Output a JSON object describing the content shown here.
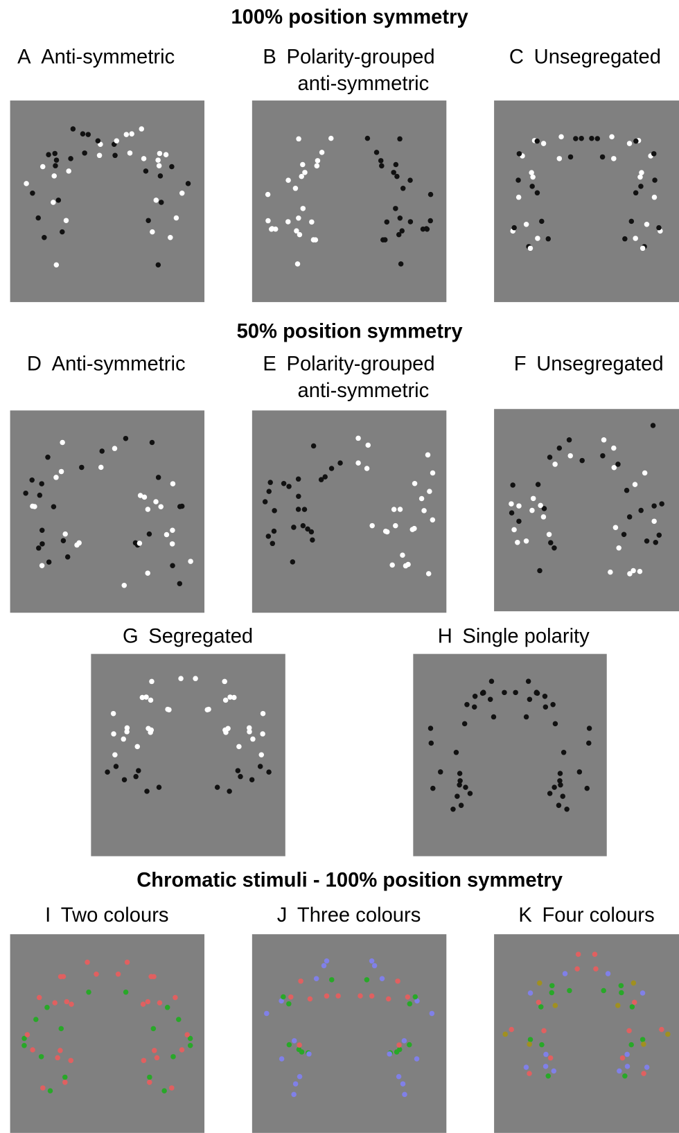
{
  "sections": [
    {
      "title": "100% position symmetry",
      "panels": [
        {
          "letter": "A",
          "lines": [
            "Anti-symmetric"
          ]
        },
        {
          "letter": "B",
          "lines": [
            "Polarity-grouped",
            "anti-symmetric"
          ]
        },
        {
          "letter": "C",
          "lines": [
            "Unsegregated"
          ]
        }
      ]
    },
    {
      "title": "50% position symmetry",
      "panels": [
        {
          "letter": "D",
          "lines": [
            "Anti-symmetric"
          ]
        },
        {
          "letter": "E",
          "lines": [
            "Polarity-grouped",
            "anti-symmetric"
          ]
        },
        {
          "letter": "F",
          "lines": [
            "Unsegregated"
          ]
        },
        {
          "letter": "G",
          "lines": [
            "Segregated"
          ]
        },
        {
          "letter": "H",
          "lines": [
            "Single polarity"
          ]
        }
      ]
    },
    {
      "title": "Chromatic stimuli - 100% position symmetry",
      "panels": [
        {
          "letter": "I",
          "lines": [
            "Two colours"
          ]
        },
        {
          "letter": "J",
          "lines": [
            "Three colours"
          ]
        },
        {
          "letter": "K",
          "lines": [
            "Four colours"
          ]
        }
      ]
    }
  ]
}
